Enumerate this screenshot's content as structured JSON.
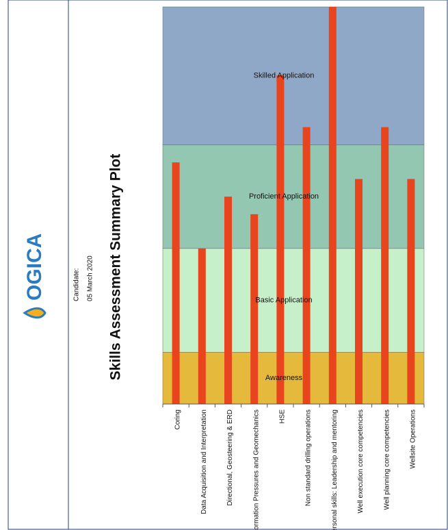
{
  "header": {
    "logo": "OGICA",
    "title": "Skills Assessment Summary Plot",
    "candidate_label": "Candidate:",
    "date": "05 March 2020"
  },
  "chart_data": {
    "type": "bar",
    "categories": [
      "Coring",
      "Data Acquisition and Interpretation",
      "Directional, Geosteering & ERD",
      "Formation Pressures and Geomechanics",
      "HSE",
      "Non standard drilling operations",
      "Personal skills: Leadership and mentoring",
      "Well execution core competencies",
      "Well planning core competencies",
      "Wellsite Operations"
    ],
    "values": [
      2.33,
      1.5,
      2.0,
      1.83,
      3.17,
      2.67,
      3.83,
      2.17,
      2.67,
      2.17
    ],
    "color": "#e8441e",
    "ylim": [
      0,
      3.83
    ],
    "bands": [
      {
        "name": "Awareness",
        "from": 0,
        "to": 0.5,
        "color": "#e4b93c"
      },
      {
        "name": "Basic Application",
        "from": 0.5,
        "to": 1.5,
        "color": "#c6f0c9"
      },
      {
        "name": "Proficient Application",
        "from": 1.5,
        "to": 2.5,
        "color": "#93c7b1"
      },
      {
        "name": "Skilled Application",
        "from": 2.5,
        "to": 3.83,
        "color": "#90a8c7"
      }
    ]
  }
}
